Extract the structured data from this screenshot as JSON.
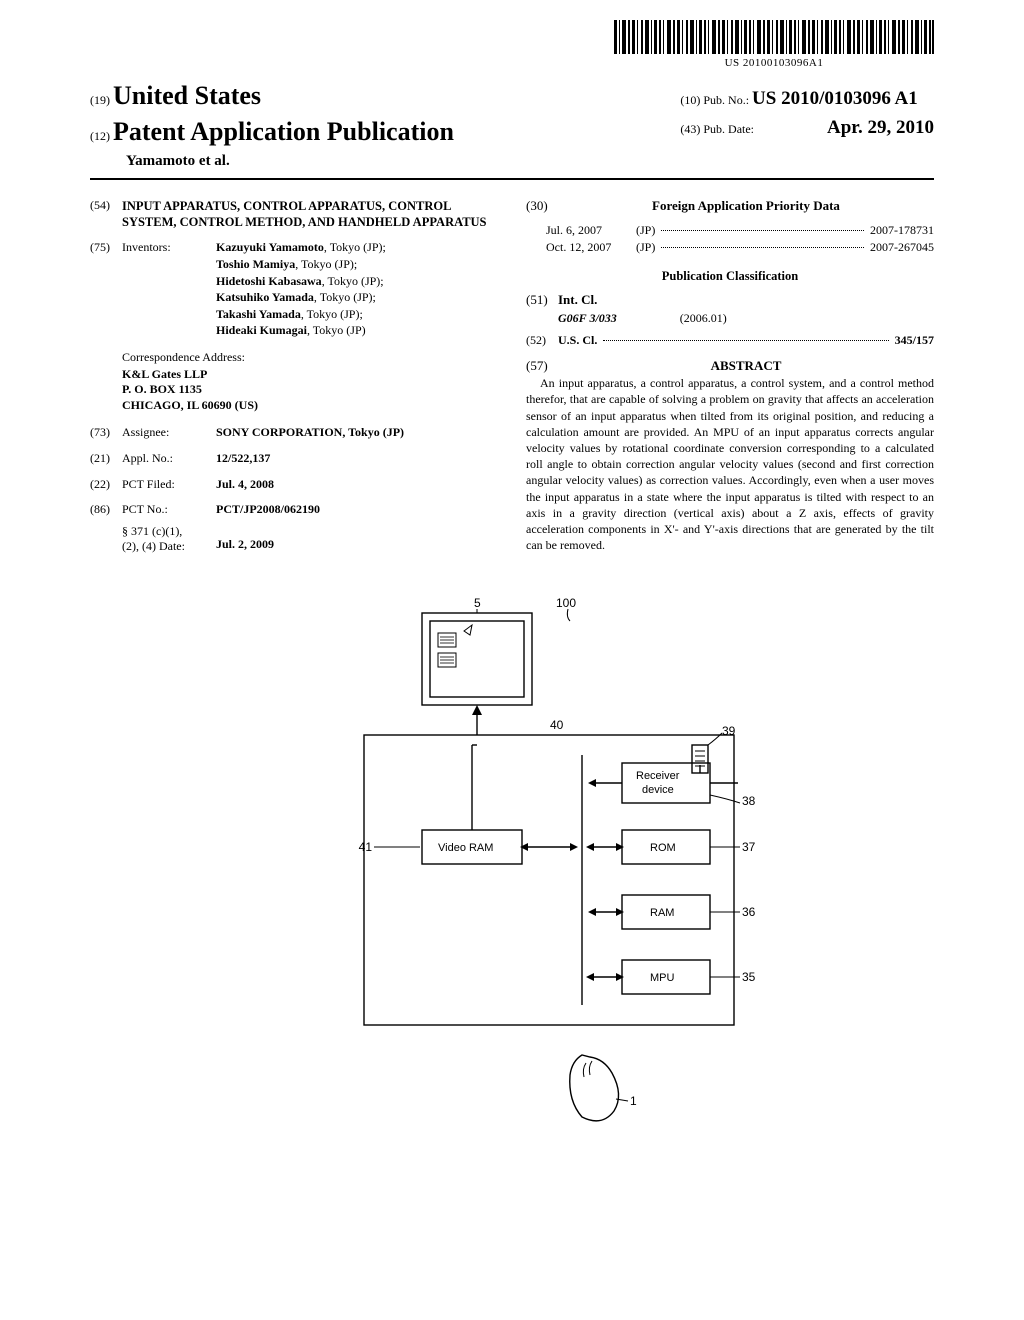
{
  "barcode_text": "US 20100103096A1",
  "header": {
    "country_label": "(19)",
    "country": "United States",
    "pubtype_label": "(12)",
    "pubtype": "Patent Application Publication",
    "authors": "Yamamoto et al.",
    "pubno_label": "(10) Pub. No.:",
    "pubno": "US 2010/0103096 A1",
    "pubdate_label": "(43) Pub. Date:",
    "pubdate": "Apr. 29, 2010"
  },
  "left": {
    "title_num": "(54)",
    "title": "INPUT APPARATUS, CONTROL APPARATUS, CONTROL SYSTEM, CONTROL METHOD, AND HANDHELD APPARATUS",
    "inventors_num": "(75)",
    "inventors_label": "Inventors:",
    "inventors": [
      "Kazuyuki Yamamoto, Tokyo (JP);",
      "Toshio Mamiya, Tokyo (JP);",
      "Hidetoshi Kabasawa, Tokyo (JP);",
      "Katsuhiko Yamada, Tokyo (JP);",
      "Takashi Yamada, Tokyo (JP);",
      "Hideaki Kumagai, Tokyo (JP)"
    ],
    "corr_label": "Correspondence Address:",
    "corr_lines": [
      "K&L Gates LLP",
      "P. O. BOX 1135",
      "CHICAGO, IL 60690 (US)"
    ],
    "assignee_num": "(73)",
    "assignee_label": "Assignee:",
    "assignee": "SONY CORPORATION, Tokyo (JP)",
    "applno_num": "(21)",
    "applno_label": "Appl. No.:",
    "applno": "12/522,137",
    "pctfiled_num": "(22)",
    "pctfiled_label": "PCT Filed:",
    "pctfiled": "Jul. 4, 2008",
    "pctno_num": "(86)",
    "pctno_label": "PCT No.:",
    "pctno": "PCT/JP2008/062190",
    "s371_label": "§ 371 (c)(1),",
    "s371_label2": "(2), (4) Date:",
    "s371_date": "Jul. 2, 2009"
  },
  "right": {
    "foreign_num": "(30)",
    "foreign_hdr": "Foreign Application Priority Data",
    "foreign_rows": [
      {
        "date": "Jul. 6, 2007",
        "cc": "(JP)",
        "num": "2007-178731"
      },
      {
        "date": "Oct. 12, 2007",
        "cc": "(JP)",
        "num": "2007-267045"
      }
    ],
    "pubclass_hdr": "Publication Classification",
    "intcl_num": "(51)",
    "intcl_label": "Int. Cl.",
    "intcl_class": "G06F 3/033",
    "intcl_date": "(2006.01)",
    "uscl_num": "(52)",
    "uscl_label": "U.S. Cl.",
    "uscl_val": "345/157",
    "abstract_num": "(57)",
    "abstract_hdr": "ABSTRACT",
    "abstract": "An input apparatus, a control apparatus, a control system, and a control method therefor, that are capable of solving a problem on gravity that affects an acceleration sensor of an input apparatus when tilted from its original position, and reducing a calculation amount are provided. An MPU of an input apparatus corrects angular velocity values by rotational coordinate conversion corresponding to a calculated roll angle to obtain correction angular velocity values (second and first correction angular velocity values) as correction values. Accordingly, even when a user moves the input apparatus in a state where the input apparatus is tilted with respect to an axis in a gravity direction (vertical axis) about a Z axis, effects of gravity acceleration components in X'- and Y'-axis directions that are generated by the tilt can be removed."
  },
  "figure": {
    "labels": {
      "n5": "5",
      "n100": "100",
      "n40": "40",
      "n39": "39",
      "n38": "38",
      "n37": "37",
      "n36": "36",
      "n35": "35",
      "n41": "41",
      "n1": "1",
      "receiver": "Receiver\ndevice",
      "rom": "ROM",
      "ram": "RAM",
      "mpu": "MPU",
      "vram": "Video RAM"
    },
    "stroke": "#000000",
    "stroke_width": 1.4,
    "font_family": "Arial, sans-serif",
    "font_size": 12
  }
}
